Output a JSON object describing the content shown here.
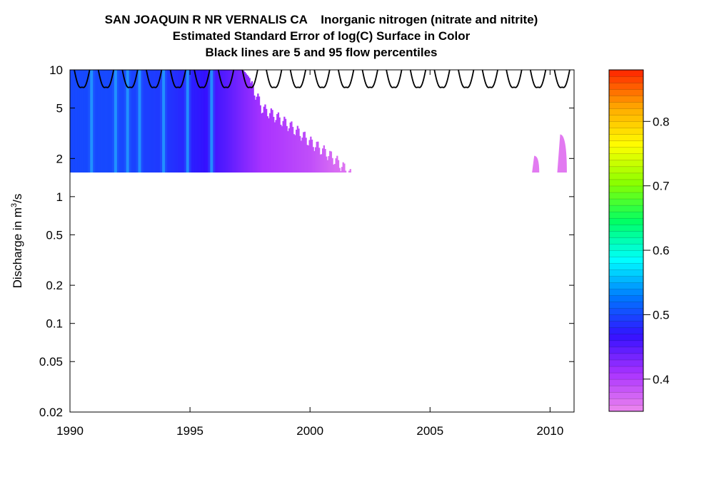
{
  "chart_data": {
    "type": "heatmap",
    "title_line1_site": "SAN JOAQUIN R NR VERNALIS CA",
    "title_line1_param": "Inorganic nitrogen (nitrate and nitrite)",
    "title_line2": "Estimated Standard Error of log(C) Surface in Color",
    "title_line3": "Black lines are 5 and 95 flow percentiles",
    "xlabel": "",
    "ylabel_prefix": "Discharge in m",
    "ylabel_sup": "3",
    "ylabel_suffix": "/s",
    "xlim": [
      1990,
      2011
    ],
    "ylim": [
      0.02,
      10
    ],
    "y_scale": "log",
    "x_ticks": [
      {
        "value": 1990,
        "label": "1990"
      },
      {
        "value": 1995,
        "label": "1995"
      },
      {
        "value": 2000,
        "label": "2000"
      },
      {
        "value": 2005,
        "label": "2005"
      },
      {
        "value": 2010,
        "label": "2010"
      }
    ],
    "y_ticks": [
      {
        "value": 10,
        "label": "10"
      },
      {
        "value": 5,
        "label": "5"
      },
      {
        "value": 2,
        "label": "2"
      },
      {
        "value": 1,
        "label": "1"
      },
      {
        "value": 0.5,
        "label": "0.5"
      },
      {
        "value": 0.2,
        "label": "0.2"
      },
      {
        "value": 0.1,
        "label": "0.1"
      },
      {
        "value": 0.05,
        "label": "0.05"
      },
      {
        "value": 0.02,
        "label": "0.02"
      }
    ],
    "colorbar": {
      "range": [
        0.35,
        0.88
      ],
      "ticks": [
        {
          "value": 0.8,
          "label": "0.8"
        },
        {
          "value": 0.7,
          "label": "0.7"
        },
        {
          "value": 0.6,
          "label": "0.6"
        },
        {
          "value": 0.5,
          "label": "0.5"
        },
        {
          "value": 0.4,
          "label": "0.4"
        }
      ],
      "colors_low_to_high": [
        "#ee88ee",
        "#aa33ff",
        "#3311ff",
        "#0077ff",
        "#00ffff",
        "#00ff66",
        "#88ff00",
        "#ffff00",
        "#ffaa00",
        "#ff2200"
      ]
    },
    "surface": {
      "q_min": 1.55,
      "profile": [
        {
          "year": 1990.0,
          "q_top": 10,
          "se": 0.5
        },
        {
          "year": 1992.0,
          "q_top": 10,
          "se": 0.5
        },
        {
          "year": 1994.0,
          "q_top": 10,
          "se": 0.49
        },
        {
          "year": 1995.5,
          "q_top": 10,
          "se": 0.47
        },
        {
          "year": 1996.5,
          "q_top": 10,
          "se": 0.45
        },
        {
          "year": 1997.2,
          "q_top": 10,
          "se": 0.43
        },
        {
          "year": 1997.6,
          "q_top": 8,
          "se": 0.42
        },
        {
          "year": 1998.0,
          "q_top": 5.5,
          "se": 0.41
        },
        {
          "year": 1999.0,
          "q_top": 4.2,
          "se": 0.4
        },
        {
          "year": 2000.0,
          "q_top": 3.0,
          "se": 0.39
        },
        {
          "year": 2001.0,
          "q_top": 2.2,
          "se": 0.37
        },
        {
          "year": 2001.8,
          "q_top": 1.55,
          "se": 0.36
        }
      ],
      "bright_streaks": [
        1990.9,
        1991.9,
        1992.4,
        1992.9,
        1993.9,
        1994.9,
        1995.9
      ],
      "late_patches": [
        {
          "start": 2009.25,
          "end": 2009.55,
          "q_top": 2.1
        },
        {
          "start": 2010.3,
          "end": 2010.7,
          "q_top": 3.1
        }
      ]
    },
    "flow_percentile_95": {
      "q_high": 10,
      "q_dip": 7.3,
      "years": [
        1990.5,
        1991.5,
        1992.5,
        1993.5,
        1994.5,
        1995.5,
        1996.5,
        1997.5,
        1998.5,
        1999.5,
        2000.5,
        2001.5,
        2002.5,
        2003.5,
        2004.5,
        2005.5,
        2006.5,
        2007.5,
        2008.5,
        2009.5,
        2010.5
      ]
    },
    "grid": false,
    "legend": "colorbar-right"
  }
}
